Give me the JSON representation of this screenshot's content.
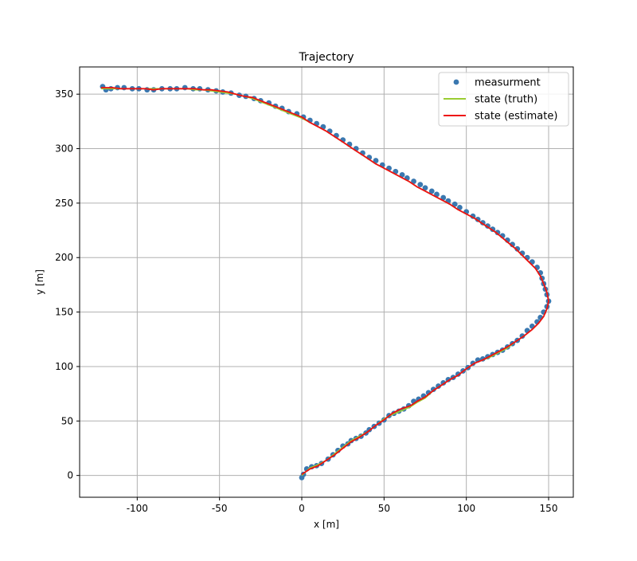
{
  "chart_data": {
    "type": "scatter",
    "title": "Trajectory",
    "xlabel": "x [m]",
    "ylabel": "y [m]",
    "xlim": [
      -135,
      165
    ],
    "ylim": [
      -20,
      375
    ],
    "xticks": [
      -100,
      -50,
      0,
      50,
      100,
      150
    ],
    "yticks": [
      0,
      50,
      100,
      150,
      200,
      250,
      300,
      350
    ],
    "grid": true,
    "legend_position": "top-right",
    "legend": [
      "measurment",
      "state (truth)",
      "state (estimate)"
    ],
    "colors": {
      "measurement": "#3a78b0",
      "truth": "#9acd32",
      "estimate": "#ee1111",
      "grid": "#b0b0b0"
    },
    "series": [
      {
        "name": "measurment",
        "kind": "scatter",
        "points": [
          [
            0,
            -2
          ],
          [
            1,
            1
          ],
          [
            3,
            6
          ],
          [
            6,
            8
          ],
          [
            9,
            9
          ],
          [
            12,
            11
          ],
          [
            16,
            15
          ],
          [
            19,
            19
          ],
          [
            22,
            23
          ],
          [
            25,
            27
          ],
          [
            28,
            29
          ],
          [
            30,
            32
          ],
          [
            33,
            34
          ],
          [
            36,
            36
          ],
          [
            39,
            39
          ],
          [
            41,
            42
          ],
          [
            44,
            45
          ],
          [
            47,
            48
          ],
          [
            50,
            51
          ],
          [
            53,
            55
          ],
          [
            56,
            57
          ],
          [
            59,
            59
          ],
          [
            62,
            61
          ],
          [
            65,
            64
          ],
          [
            68,
            68
          ],
          [
            71,
            70
          ],
          [
            74,
            73
          ],
          [
            77,
            76
          ],
          [
            80,
            79
          ],
          [
            83,
            82
          ],
          [
            86,
            85
          ],
          [
            89,
            88
          ],
          [
            92,
            90
          ],
          [
            95,
            93
          ],
          [
            98,
            96
          ],
          [
            101,
            99
          ],
          [
            104,
            103
          ],
          [
            107,
            106
          ],
          [
            110,
            107
          ],
          [
            113,
            109
          ],
          [
            116,
            111
          ],
          [
            119,
            113
          ],
          [
            122,
            115
          ],
          [
            125,
            118
          ],
          [
            128,
            121
          ],
          [
            131,
            124
          ],
          [
            134,
            128
          ],
          [
            137,
            133
          ],
          [
            140,
            137
          ],
          [
            143,
            141
          ],
          [
            145,
            145
          ],
          [
            147,
            150
          ],
          [
            149,
            155
          ],
          [
            150,
            160
          ],
          [
            149,
            166
          ],
          [
            148,
            171
          ],
          [
            147,
            176
          ],
          [
            146,
            181
          ],
          [
            145,
            186
          ],
          [
            143,
            191
          ],
          [
            140,
            196
          ],
          [
            137,
            200
          ],
          [
            134,
            204
          ],
          [
            131,
            208
          ],
          [
            128,
            212
          ],
          [
            125,
            216
          ],
          [
            122,
            220
          ],
          [
            119,
            223
          ],
          [
            116,
            226
          ],
          [
            113,
            229
          ],
          [
            110,
            232
          ],
          [
            107,
            235
          ],
          [
            104,
            238
          ],
          [
            100,
            242
          ],
          [
            96,
            246
          ],
          [
            93,
            249
          ],
          [
            89,
            252
          ],
          [
            86,
            255
          ],
          [
            82,
            258
          ],
          [
            79,
            261
          ],
          [
            75,
            264
          ],
          [
            72,
            267
          ],
          [
            68,
            270
          ],
          [
            64,
            273
          ],
          [
            61,
            276
          ],
          [
            57,
            279
          ],
          [
            53,
            282
          ],
          [
            49,
            285
          ],
          [
            45,
            289
          ],
          [
            41,
            292
          ],
          [
            37,
            296
          ],
          [
            33,
            300
          ],
          [
            29,
            304
          ],
          [
            25,
            308
          ],
          [
            21,
            312
          ],
          [
            17,
            316
          ],
          [
            13,
            320
          ],
          [
            9,
            323
          ],
          [
            5,
            326
          ],
          [
            1,
            329
          ],
          [
            -3,
            332
          ],
          [
            -8,
            334
          ],
          [
            -12,
            337
          ],
          [
            -16,
            339
          ],
          [
            -20,
            342
          ],
          [
            -25,
            344
          ],
          [
            -29,
            346
          ],
          [
            -34,
            348
          ],
          [
            -38,
            349
          ],
          [
            -43,
            351
          ],
          [
            -48,
            352
          ],
          [
            -52,
            353
          ],
          [
            -57,
            354
          ],
          [
            -62,
            355
          ],
          [
            -66,
            355
          ],
          [
            -71,
            356
          ],
          [
            -76,
            355
          ],
          [
            -80,
            355
          ],
          [
            -85,
            355
          ],
          [
            -90,
            354
          ],
          [
            -94,
            354
          ],
          [
            -99,
            355
          ],
          [
            -103,
            355
          ],
          [
            -108,
            356
          ],
          [
            -112,
            356
          ],
          [
            -116,
            355
          ],
          [
            -119,
            354
          ],
          [
            -121,
            357
          ]
        ]
      },
      {
        "name": "state (truth)",
        "kind": "line",
        "points": [
          [
            0,
            0
          ],
          [
            5,
            7
          ],
          [
            10,
            10
          ],
          [
            15,
            14
          ],
          [
            20,
            20
          ],
          [
            25,
            26
          ],
          [
            30,
            32
          ],
          [
            35,
            36
          ],
          [
            40,
            40
          ],
          [
            45,
            46
          ],
          [
            50,
            52
          ],
          [
            55,
            56
          ],
          [
            60,
            59
          ],
          [
            66,
            63
          ],
          [
            70,
            67
          ],
          [
            75,
            71
          ],
          [
            80,
            78
          ],
          [
            85,
            83
          ],
          [
            90,
            88
          ],
          [
            95,
            92
          ],
          [
            100,
            98
          ],
          [
            105,
            103
          ],
          [
            110,
            106
          ],
          [
            115,
            109
          ],
          [
            120,
            113
          ],
          [
            125,
            117
          ],
          [
            130,
            123
          ],
          [
            135,
            128
          ],
          [
            140,
            134
          ],
          [
            144,
            140
          ],
          [
            147,
            146
          ],
          [
            149,
            153
          ],
          [
            150,
            160
          ],
          [
            149,
            168
          ],
          [
            147,
            176
          ],
          [
            145,
            183
          ],
          [
            142,
            190
          ],
          [
            138,
            196
          ],
          [
            134,
            202
          ],
          [
            130,
            208
          ],
          [
            126,
            213
          ],
          [
            122,
            218
          ],
          [
            118,
            223
          ],
          [
            114,
            227
          ],
          [
            110,
            231
          ],
          [
            105,
            236
          ],
          [
            100,
            240
          ],
          [
            95,
            244
          ],
          [
            90,
            249
          ],
          [
            85,
            253
          ],
          [
            80,
            257
          ],
          [
            75,
            261
          ],
          [
            70,
            265
          ],
          [
            65,
            270
          ],
          [
            60,
            274
          ],
          [
            55,
            278
          ],
          [
            50,
            282
          ],
          [
            45,
            286
          ],
          [
            40,
            291
          ],
          [
            35,
            296
          ],
          [
            30,
            301
          ],
          [
            25,
            306
          ],
          [
            20,
            311
          ],
          [
            15,
            316
          ],
          [
            10,
            320
          ],
          [
            5,
            324
          ],
          [
            0,
            328
          ],
          [
            -5,
            331
          ],
          [
            -10,
            334
          ],
          [
            -15,
            337
          ],
          [
            -20,
            340
          ],
          [
            -25,
            343
          ],
          [
            -30,
            346
          ],
          [
            -35,
            348
          ],
          [
            -40,
            350
          ],
          [
            -45,
            351
          ],
          [
            -50,
            352
          ],
          [
            -55,
            353
          ],
          [
            -60,
            354
          ],
          [
            -65,
            354
          ],
          [
            -70,
            355
          ],
          [
            -75,
            355
          ],
          [
            -80,
            355
          ],
          [
            -85,
            355
          ],
          [
            -90,
            355
          ],
          [
            -95,
            355
          ],
          [
            -100,
            355
          ],
          [
            -105,
            355
          ],
          [
            -110,
            355
          ],
          [
            -115,
            355
          ],
          [
            -122,
            355
          ]
        ]
      },
      {
        "name": "state (estimate)",
        "kind": "line",
        "points": [
          [
            0,
            1
          ],
          [
            5,
            6
          ],
          [
            10,
            9
          ],
          [
            15,
            14
          ],
          [
            20,
            19
          ],
          [
            25,
            25
          ],
          [
            30,
            31
          ],
          [
            35,
            35
          ],
          [
            40,
            40
          ],
          [
            45,
            46
          ],
          [
            50,
            51
          ],
          [
            55,
            57
          ],
          [
            60,
            61
          ],
          [
            66,
            64
          ],
          [
            70,
            68
          ],
          [
            75,
            72
          ],
          [
            80,
            78
          ],
          [
            85,
            83
          ],
          [
            90,
            88
          ],
          [
            95,
            92
          ],
          [
            100,
            98
          ],
          [
            105,
            103
          ],
          [
            110,
            106
          ],
          [
            115,
            110
          ],
          [
            120,
            114
          ],
          [
            125,
            118
          ],
          [
            130,
            123
          ],
          [
            135,
            128
          ],
          [
            140,
            134
          ],
          [
            144,
            140
          ],
          [
            147,
            146
          ],
          [
            149,
            153
          ],
          [
            150,
            160
          ],
          [
            149,
            168
          ],
          [
            147,
            176
          ],
          [
            145,
            183
          ],
          [
            142,
            190
          ],
          [
            138,
            196
          ],
          [
            134,
            202
          ],
          [
            130,
            208
          ],
          [
            126,
            213
          ],
          [
            122,
            218
          ],
          [
            118,
            223
          ],
          [
            114,
            227
          ],
          [
            110,
            231
          ],
          [
            105,
            236
          ],
          [
            100,
            240
          ],
          [
            95,
            244
          ],
          [
            90,
            249
          ],
          [
            85,
            253
          ],
          [
            80,
            257
          ],
          [
            75,
            261
          ],
          [
            70,
            265
          ],
          [
            65,
            270
          ],
          [
            60,
            274
          ],
          [
            55,
            278
          ],
          [
            50,
            282
          ],
          [
            45,
            286
          ],
          [
            40,
            291
          ],
          [
            35,
            296
          ],
          [
            30,
            301
          ],
          [
            25,
            306
          ],
          [
            20,
            311
          ],
          [
            15,
            316
          ],
          [
            10,
            320
          ],
          [
            5,
            324
          ],
          [
            0,
            329
          ],
          [
            -5,
            332
          ],
          [
            -10,
            335
          ],
          [
            -15,
            338
          ],
          [
            -20,
            341
          ],
          [
            -25,
            344
          ],
          [
            -30,
            347
          ],
          [
            -35,
            348
          ],
          [
            -40,
            350
          ],
          [
            -45,
            352
          ],
          [
            -50,
            353
          ],
          [
            -55,
            354
          ],
          [
            -60,
            354
          ],
          [
            -65,
            355
          ],
          [
            -70,
            355
          ],
          [
            -75,
            355
          ],
          [
            -80,
            355
          ],
          [
            -85,
            355
          ],
          [
            -90,
            354
          ],
          [
            -95,
            355
          ],
          [
            -100,
            355
          ],
          [
            -105,
            355
          ],
          [
            -110,
            355
          ],
          [
            -115,
            356
          ],
          [
            -122,
            356
          ]
        ]
      }
    ]
  }
}
